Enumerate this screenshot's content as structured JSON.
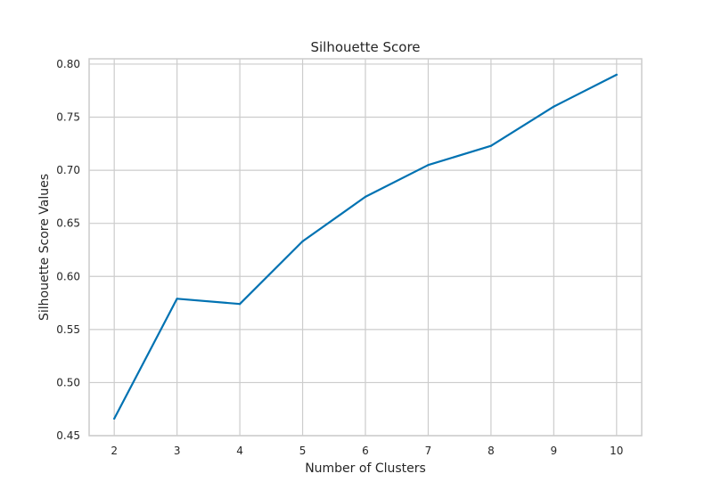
{
  "chart_data": {
    "type": "line",
    "title": "Silhouette Score",
    "xlabel": "Number of Clusters",
    "ylabel": "Silhouette Score Values",
    "xlim": [
      1.6,
      10.4
    ],
    "ylim": [
      0.45,
      0.805
    ],
    "x_ticks": [
      2,
      3,
      4,
      5,
      6,
      7,
      8,
      9,
      10
    ],
    "y_ticks": [
      0.45,
      0.5,
      0.55,
      0.6,
      0.65,
      0.7,
      0.75,
      0.8
    ],
    "y_tick_labels": [
      "0.45",
      "0.50",
      "0.55",
      "0.60",
      "0.65",
      "0.70",
      "0.75",
      "0.80"
    ],
    "x": [
      2,
      3,
      4,
      5,
      6,
      7,
      8,
      9,
      10
    ],
    "series": [
      {
        "values": [
          0.466,
          0.579,
          0.574,
          0.633,
          0.675,
          0.705,
          0.723,
          0.76,
          0.79
        ],
        "color": "#0072b2"
      }
    ],
    "grid": true,
    "grid_color": "#cccccc",
    "frame_color": "#cccccc",
    "legend": "none"
  }
}
